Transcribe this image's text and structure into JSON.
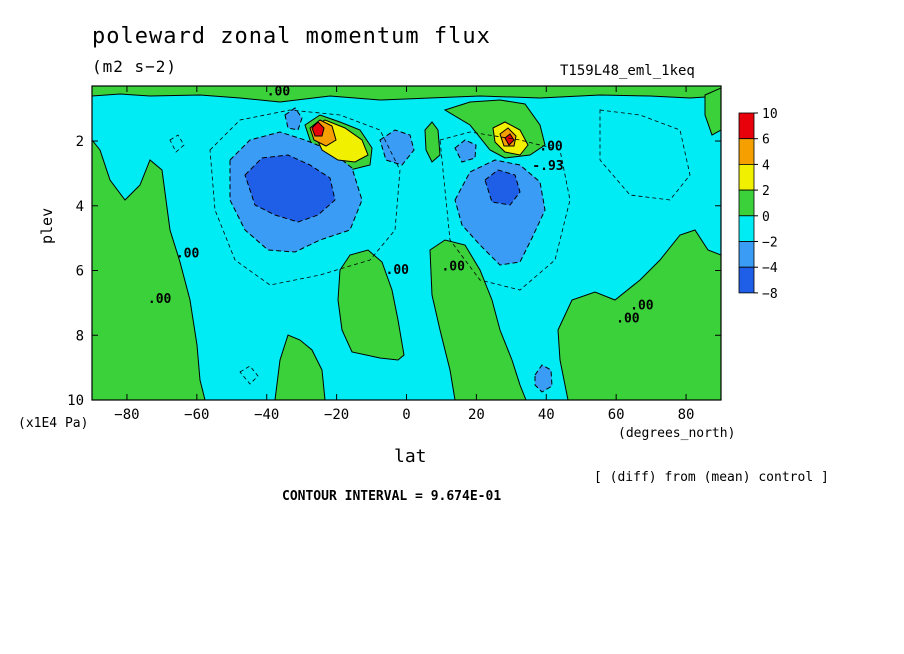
{
  "chart_data": {
    "type": "heatmap",
    "title": "poleward zonal momentum flux",
    "units": "(m2 s−2)",
    "run_label": "T159L48_eml_1keq",
    "xlabel": "lat",
    "xunits": "(degrees_north)",
    "ylabel": "plev",
    "y_multiplier": "(x1E4 Pa)",
    "xlim": [
      -90,
      90
    ],
    "ylim": [
      10,
      0.3
    ],
    "x_ticks": [
      -80,
      -60,
      -40,
      -20,
      0,
      20,
      40,
      60,
      80
    ],
    "y_ticks": [
      2,
      4,
      6,
      8,
      10
    ],
    "colorbar": {
      "labels": [
        "10",
        "6",
        "4",
        "2",
        "0",
        "−2",
        "−4",
        "−8"
      ],
      "colors": [
        "#e8000b",
        "#f5a000",
        "#f0f000",
        "#3ad13a",
        "#00ecf5",
        "#3a9cf5",
        "#1f5fe8"
      ]
    },
    "contour_labels": [
      ".00",
      ".00",
      ".00",
      ".00",
      ".00",
      ".00",
      ".00",
      ".00",
      "-.93"
    ],
    "background_value_range": [
      -2,
      0
    ],
    "features": [
      {
        "name": "SH upper negative core",
        "lat": -28,
        "plev": 3.2,
        "value": -5
      },
      {
        "name": "SH jet positive maximum",
        "lat": -25,
        "plev": 1.6,
        "value": 8
      },
      {
        "name": "NH jet positive maximum",
        "lat": 30,
        "plev": 1.8,
        "value": 5
      },
      {
        "name": "NH upper negative core",
        "lat": 28,
        "plev": 3.3,
        "value": -4
      },
      {
        "name": "NH near-surface negative cell",
        "lat": 40,
        "plev": 9.5,
        "value": -3
      }
    ],
    "footnote": "[ (diff) from (mean) control ]",
    "contour_interval_text": "CONTOUR INTERVAL = 9.674E-01"
  }
}
